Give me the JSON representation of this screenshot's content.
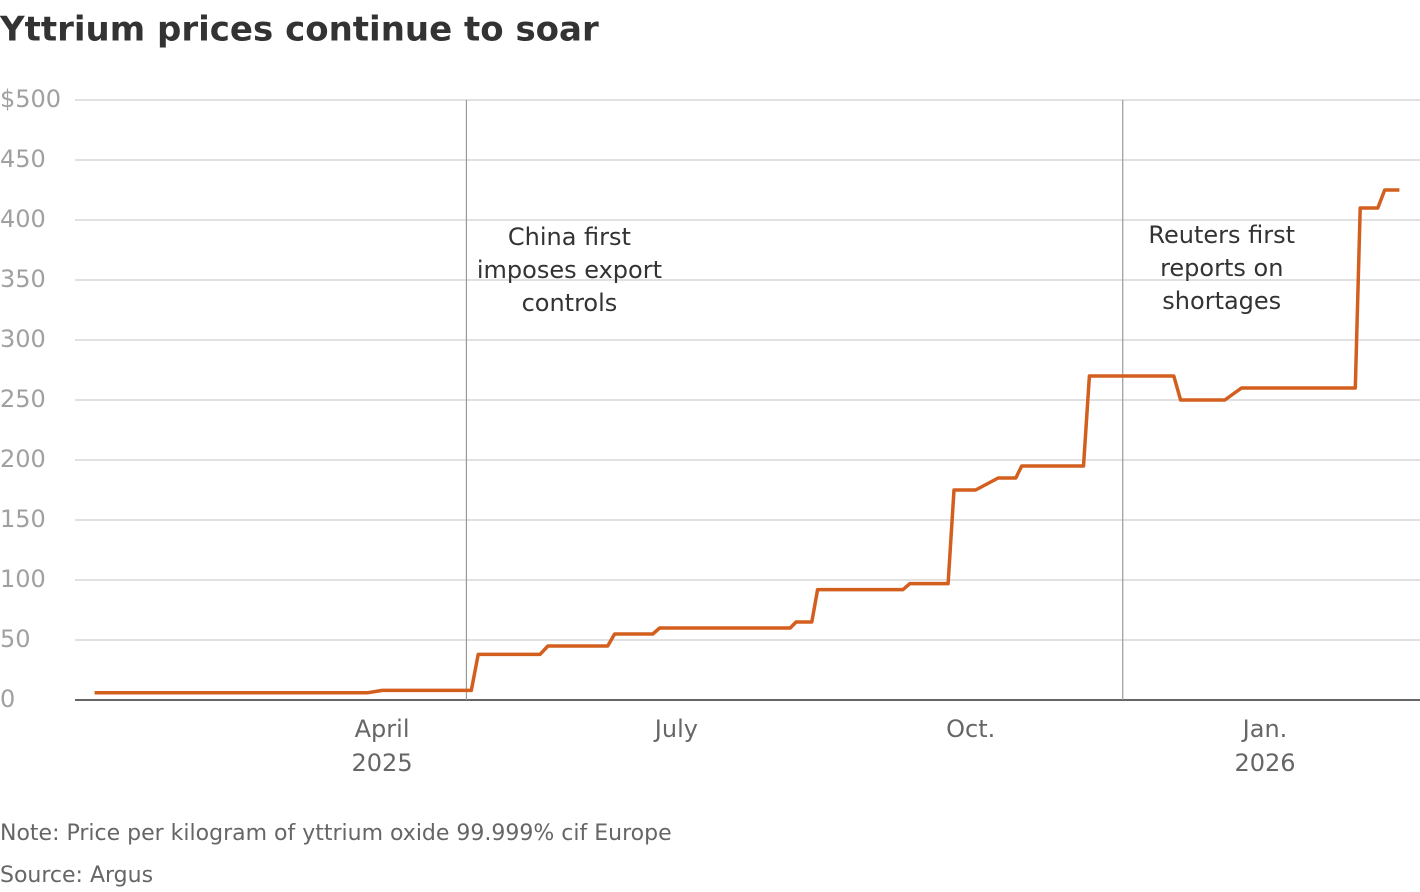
{
  "chart_data": {
    "type": "line",
    "title": "Yttrium prices continue to soar",
    "note": "Note: Price per kilogram of yttrium oxide 99.999% cif Europe",
    "source": "Source: Argus",
    "series": [
      {
        "name": "Yttrium oxide",
        "color": "#d35f1f",
        "x": [
          0.07,
          2.85,
          3.0,
          3.91,
          3.98,
          4.61,
          4.69,
          5.3,
          5.37,
          5.76,
          5.83,
          7.16,
          7.22,
          7.38,
          7.44,
          8.31,
          8.38,
          8.77,
          8.83,
          9.05,
          9.28,
          9.46,
          9.52,
          10.15,
          10.21,
          11.07,
          11.14,
          11.59,
          11.76,
          12.92,
          12.97,
          13.15,
          13.22,
          13.37
        ],
        "values": [
          6,
          6,
          8,
          8,
          38,
          38,
          45,
          45,
          55,
          55,
          60,
          60,
          65,
          65,
          92,
          92,
          97,
          97,
          175,
          175,
          185,
          185,
          195,
          195,
          270,
          270,
          250,
          250,
          260,
          260,
          410,
          410,
          425,
          425
        ]
      }
    ],
    "xlim": [
      -0.13,
      13.58
    ],
    "xticks": [
      {
        "value": 3,
        "label": "April"
      },
      {
        "value": 6,
        "label": "July"
      },
      {
        "value": 9,
        "label": "Oct."
      },
      {
        "value": 12,
        "label": "Jan."
      }
    ],
    "xtick_years": [
      {
        "value": 3,
        "label": "2025"
      },
      {
        "value": 12,
        "label": "2026"
      }
    ],
    "ylim": [
      0,
      500
    ],
    "yticks": [
      0,
      50,
      100,
      150,
      200,
      250,
      300,
      350,
      400,
      450,
      {
        "value": 500,
        "label": "$500"
      }
    ],
    "grid": true,
    "annotations": [
      {
        "x": 3.86,
        "text": [
          "China first",
          "imposes export",
          "controls"
        ]
      },
      {
        "x": 10.55,
        "text": [
          "Reuters first",
          "reports on",
          "shortages"
        ]
      }
    ]
  }
}
